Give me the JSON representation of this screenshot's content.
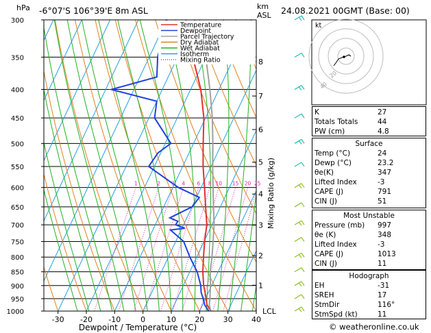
{
  "header": {
    "location": "-6°07'S  106°39'E  8m  ASL",
    "datetime": "24.08.2021  00GMT  (Base: 00)"
  },
  "axes": {
    "pressure_unit": "hPa",
    "height_unit": "km",
    "height_unit_sub": "ASL",
    "x_label": "Dewpoint / Temperature (°C)",
    "mixing_ratio_label": "Mixing Ratio (g/kg)",
    "lcl_label": "LCL",
    "pressure_ticks": [
      "300",
      "350",
      "400",
      "450",
      "500",
      "550",
      "600",
      "650",
      "700",
      "750",
      "800",
      "850",
      "900",
      "950",
      "1000"
    ],
    "temp_ticks": [
      "-30",
      "-20",
      "-10",
      "0",
      "10",
      "20",
      "30",
      "40"
    ],
    "km_ticks": [
      "8",
      "7",
      "6",
      "5",
      "4",
      "3",
      "2",
      "1"
    ],
    "mixing_ratio_ticks": [
      "1",
      "2",
      "3",
      "4",
      "6",
      "8",
      "10",
      "15",
      "20",
      "25"
    ]
  },
  "legend": [
    {
      "label": "Temperature",
      "color": "#e03030",
      "style": "solid"
    },
    {
      "label": "Dewpoint",
      "color": "#2040e0",
      "style": "solid"
    },
    {
      "label": "Parcel Trajectory",
      "color": "#a0a0a0",
      "style": "solid"
    },
    {
      "label": "Dry Adiabat",
      "color": "#e08020",
      "style": "solid"
    },
    {
      "label": "Wet Adiabat",
      "color": "#20b020",
      "style": "solid"
    },
    {
      "label": "Isotherm",
      "color": "#20a0e0",
      "style": "solid"
    },
    {
      "label": "Mixing Ratio",
      "color": "#e020a0",
      "style": "dotted"
    }
  ],
  "chart_data": {
    "type": "line",
    "title": "",
    "xlabel": "Dewpoint / Temperature (°C)",
    "ylabel": "hPa",
    "xlim": [
      -35,
      40
    ],
    "ylim": [
      1000,
      300
    ],
    "skew_deg_per_log": 45,
    "series": [
      {
        "name": "Temperature",
        "color": "#e03030",
        "points": [
          [
            1000,
            24
          ],
          [
            975,
            21.6
          ],
          [
            950,
            20.2
          ],
          [
            925,
            18.8
          ],
          [
            900,
            17.2
          ],
          [
            850,
            14.6
          ],
          [
            800,
            12.4
          ],
          [
            750,
            10.2
          ],
          [
            700,
            8.2
          ],
          [
            650,
            4.8
          ],
          [
            600,
            1.2
          ],
          [
            550,
            -2.8
          ],
          [
            500,
            -6.6
          ],
          [
            450,
            -10.6
          ],
          [
            400,
            -16.4
          ],
          [
            350,
            -24.6
          ],
          [
            300,
            -33.2
          ]
        ]
      },
      {
        "name": "Dewpoint",
        "color": "#2040e0",
        "points": [
          [
            1000,
            23.2
          ],
          [
            975,
            20.8
          ],
          [
            950,
            19.2
          ],
          [
            925,
            17.4
          ],
          [
            900,
            16.2
          ],
          [
            850,
            12.6
          ],
          [
            800,
            7.6
          ],
          [
            750,
            2.8
          ],
          [
            715,
            -3.8
          ],
          [
            710,
            1
          ],
          [
            700,
            -2.8
          ],
          [
            690,
            -2.6
          ],
          [
            680,
            -6
          ],
          [
            650,
            0
          ],
          [
            625,
            1
          ],
          [
            600,
            -8
          ],
          [
            550,
            -22
          ],
          [
            520,
            -21
          ],
          [
            500,
            -18
          ],
          [
            450,
            -28
          ],
          [
            420,
            -30
          ],
          [
            400,
            -48
          ],
          [
            380,
            -34
          ],
          [
            350,
            -37
          ],
          [
            300,
            -40
          ]
        ]
      },
      {
        "name": "Parcel Trajectory",
        "color": "#a0a0a0",
        "points": [
          [
            1000,
            24
          ],
          [
            975,
            22.4
          ],
          [
            950,
            21.6
          ],
          [
            925,
            20.6
          ],
          [
            900,
            19.6
          ],
          [
            850,
            17.2
          ],
          [
            800,
            15.4
          ],
          [
            750,
            13.2
          ],
          [
            700,
            10.8
          ],
          [
            650,
            7.6
          ],
          [
            600,
            4.2
          ],
          [
            550,
            0.6
          ],
          [
            500,
            -3.2
          ],
          [
            450,
            -7.6
          ],
          [
            400,
            -13.2
          ],
          [
            350,
            -20
          ],
          [
            300,
            -28.4
          ]
        ]
      }
    ]
  },
  "indices": {
    "general": [
      {
        "label": "K",
        "value": "27"
      },
      {
        "label": "Totals Totals",
        "value": "44"
      },
      {
        "label": "PW (cm)",
        "value": "4.8"
      }
    ],
    "surface_title": "Surface",
    "surface": [
      {
        "label": "Temp (°C)",
        "value": "24"
      },
      {
        "label": "Dewp (°C)",
        "value": "23.2"
      },
      {
        "label": "θe(K)",
        "value": "347"
      },
      {
        "label": "Lifted Index",
        "value": "-3"
      },
      {
        "label": "CAPE (J)",
        "value": "791"
      },
      {
        "label": "CIN (J)",
        "value": "51"
      }
    ],
    "unstable_title": "Most Unstable",
    "unstable": [
      {
        "label": "Pressure (mb)",
        "value": "997"
      },
      {
        "label": "θe (K)",
        "value": "348"
      },
      {
        "label": "Lifted Index",
        "value": "-3"
      },
      {
        "label": "CAPE (J)",
        "value": "1013"
      },
      {
        "label": "CIN (J)",
        "value": "11"
      }
    ],
    "hodograph_title": "Hodograph",
    "hodograph": [
      {
        "label": "EH",
        "value": "-31"
      },
      {
        "label": "SREH",
        "value": "17"
      },
      {
        "label": "StmDir",
        "value": "116°"
      },
      {
        "label": "StmSpd (kt)",
        "value": "11"
      }
    ]
  },
  "hodo": {
    "label": "kt",
    "ring_labels": [
      "20",
      "40"
    ]
  },
  "copyright": "© weatheronline.co.uk"
}
